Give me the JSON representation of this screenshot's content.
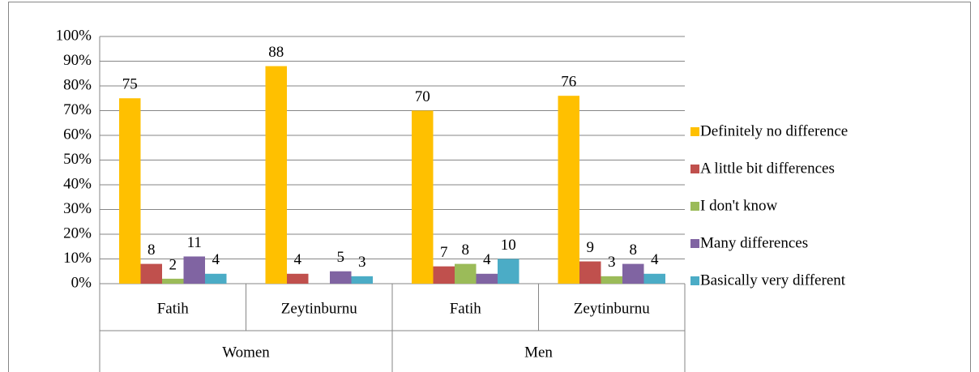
{
  "chart_data": {
    "type": "bar",
    "categories": [
      "Fatih",
      "Zeytinburnu",
      "Fatih",
      "Zeytinburnu"
    ],
    "groups": [
      "Women",
      "Men"
    ],
    "series": [
      {
        "name": "Definitely no difference",
        "color": "#ffc000",
        "values": [
          75,
          88,
          70,
          76
        ]
      },
      {
        "name": "A little bit differences",
        "color": "#c0504d",
        "values": [
          8,
          4,
          7,
          9
        ]
      },
      {
        "name": "I don't know",
        "color": "#9bbb59",
        "values": [
          2,
          null,
          8,
          3
        ]
      },
      {
        "name": "Many differences",
        "color": "#8064a2",
        "values": [
          11,
          5,
          4,
          8
        ]
      },
      {
        "name": "Basically very different",
        "color": "#4bacc6",
        "values": [
          4,
          3,
          10,
          4
        ]
      }
    ],
    "ylim": [
      0,
      100
    ],
    "yticks": [
      {
        "value": 0,
        "label": "0%"
      },
      {
        "value": 10,
        "label": "10%"
      },
      {
        "value": 20,
        "label": "20%"
      },
      {
        "value": 30,
        "label": "30%"
      },
      {
        "value": 40,
        "label": "40%"
      },
      {
        "value": 50,
        "label": "50%"
      },
      {
        "value": 60,
        "label": "60%"
      },
      {
        "value": 70,
        "label": "70%"
      },
      {
        "value": 80,
        "label": "80%"
      },
      {
        "value": 90,
        "label": "90%"
      },
      {
        "value": 100,
        "label": "100%"
      }
    ],
    "grid": true,
    "legend": "right"
  }
}
